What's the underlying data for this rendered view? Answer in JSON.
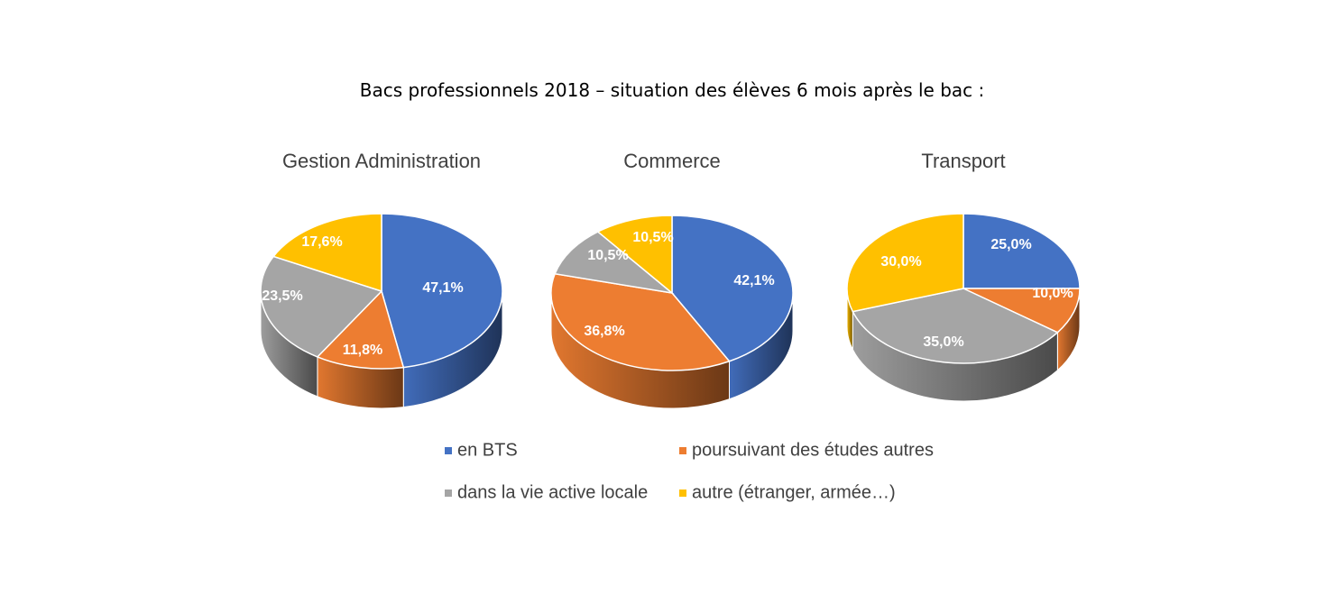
{
  "title": "Bacs professionnels 2018 – situation des élèves 6 mois après le bac :",
  "legend": [
    {
      "label": "en BTS",
      "color": "#4472C4"
    },
    {
      "label": "poursuivant des études autres",
      "color": "#ED7D31"
    },
    {
      "label": "dans la vie active locale",
      "color": "#A5A5A5"
    },
    {
      "label": "autre (étranger, armée…)",
      "color": "#FFC000"
    }
  ],
  "chart_data": [
    {
      "type": "pie",
      "title": "Gestion Administration",
      "categories": [
        "en BTS",
        "poursuivant des études autres",
        "dans la vie active locale",
        "autre (étranger, armée…)"
      ],
      "values": [
        47.1,
        11.8,
        23.5,
        17.6
      ],
      "labels": [
        "47,1%",
        "11,8%",
        "23,5%",
        "17,6%"
      ]
    },
    {
      "type": "pie",
      "title": "Commerce",
      "categories": [
        "en BTS",
        "poursuivant des études autres",
        "dans la vie active locale",
        "autre (étranger, armée…)"
      ],
      "values": [
        42.1,
        36.8,
        10.5,
        10.5
      ],
      "labels": [
        "42,1%",
        "36,8%",
        "10,5%",
        "10,5%"
      ]
    },
    {
      "type": "pie",
      "title": "Transport",
      "categories": [
        "en BTS",
        "poursuivant des études autres",
        "dans la vie active locale",
        "autre (étranger, armée…)"
      ],
      "values": [
        25.0,
        10.0,
        35.0,
        30.0
      ],
      "labels": [
        "25,0%",
        "10,0%",
        "35,0%",
        "30,0%"
      ]
    }
  ]
}
